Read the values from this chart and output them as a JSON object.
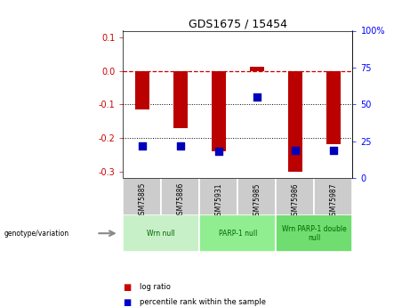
{
  "title": "GDS1675 / 15454",
  "samples": [
    "GSM75885",
    "GSM75886",
    "GSM75931",
    "GSM75985",
    "GSM75986",
    "GSM75987"
  ],
  "log_ratios": [
    -0.115,
    -0.17,
    -0.24,
    0.012,
    -0.3,
    -0.22
  ],
  "percentile_ranks": [
    22,
    22,
    18,
    55,
    19,
    19
  ],
  "ylim_left": [
    -0.32,
    0.12
  ],
  "ylim_right": [
    0,
    100
  ],
  "yticks_left": [
    0.1,
    0.0,
    -0.1,
    -0.2,
    -0.3
  ],
  "yticks_right": [
    100,
    75,
    50,
    25,
    0
  ],
  "groups": [
    {
      "label": "Wrn null",
      "start": 0,
      "end": 2,
      "color": "#c8f0c8"
    },
    {
      "label": "PARP-1 null",
      "start": 2,
      "end": 4,
      "color": "#90ee90"
    },
    {
      "label": "Wrn PARP-1 double\nnull",
      "start": 4,
      "end": 6,
      "color": "#70dd70"
    }
  ],
  "bar_color": "#bb0000",
  "dot_color": "#0000bb",
  "bar_width": 0.38,
  "dot_size": 40,
  "hline_zero_color": "#cc0000",
  "hline_dotted_color": "black",
  "legend_labels": [
    "log ratio",
    "percentile rank within the sample"
  ],
  "legend_colors": [
    "#cc0000",
    "#0000cc"
  ],
  "genotype_label": "genotype/variation"
}
